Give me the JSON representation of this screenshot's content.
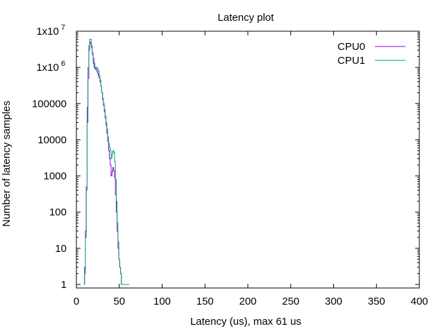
{
  "chart_data": {
    "type": "line",
    "title": "Latency plot",
    "xlabel": "Latency (us), max 61 us",
    "ylabel": "Number of latency samples",
    "xlim": [
      0,
      400
    ],
    "ylim": [
      0.8,
      10000000
    ],
    "yscale": "log",
    "grid": false,
    "legend_position": "top-right",
    "x_ticks": [
      {
        "value": 0,
        "label": "0"
      },
      {
        "value": 50,
        "label": "50"
      },
      {
        "value": 100,
        "label": "100"
      },
      {
        "value": 150,
        "label": "150"
      },
      {
        "value": 200,
        "label": "200"
      },
      {
        "value": 250,
        "label": "250"
      },
      {
        "value": 300,
        "label": "300"
      },
      {
        "value": 350,
        "label": "350"
      },
      {
        "value": 400,
        "label": "400"
      }
    ],
    "y_ticks": [
      {
        "value": 1,
        "label": "1"
      },
      {
        "value": 10,
        "label": "10"
      },
      {
        "value": 100,
        "label": "100"
      },
      {
        "value": 1000,
        "label": "1000"
      },
      {
        "value": 10000,
        "label": "10000"
      },
      {
        "value": 100000,
        "label": "100000"
      },
      {
        "value": 1000000,
        "label": "1x10",
        "exp": "6"
      },
      {
        "value": 10000000,
        "label": "1x10",
        "exp": "7"
      }
    ],
    "series": [
      {
        "name": "CPU0",
        "color": "#9400d3",
        "x": [
          9,
          10,
          11,
          12,
          13,
          14,
          15,
          16,
          17,
          18,
          19,
          20,
          21,
          22,
          23,
          24,
          25,
          26,
          27,
          28,
          29,
          30,
          31,
          32,
          33,
          34,
          35,
          36,
          37,
          38,
          39,
          40,
          41,
          42,
          43,
          44,
          45,
          46,
          47,
          48,
          49,
          50,
          51,
          52,
          53,
          54,
          55,
          56,
          57,
          58,
          59,
          60,
          61
        ],
        "y": [
          1,
          3,
          30,
          500,
          30000,
          500000,
          3000000,
          5000000,
          4500000,
          3500000,
          2500000,
          1800000,
          1300000,
          1000000,
          900000,
          800000,
          700000,
          600000,
          500000,
          400000,
          300000,
          200000,
          130000,
          90000,
          60000,
          40000,
          25000,
          15000,
          9000,
          5000,
          3000,
          2000,
          1000,
          1300,
          1700,
          1400,
          900,
          300,
          100,
          30,
          10,
          5,
          3,
          2,
          1,
          1,
          1,
          1,
          1,
          1,
          1,
          1,
          1
        ]
      },
      {
        "name": "CPU1",
        "color": "#009e73",
        "x": [
          9,
          10,
          11,
          12,
          13,
          14,
          15,
          16,
          17,
          18,
          19,
          20,
          21,
          22,
          23,
          24,
          25,
          26,
          27,
          28,
          29,
          30,
          31,
          32,
          33,
          34,
          35,
          36,
          37,
          38,
          39,
          40,
          41,
          42,
          43,
          44,
          45,
          46,
          47,
          48,
          49,
          50,
          51,
          52,
          53,
          54,
          55,
          56,
          57,
          58,
          59,
          60,
          61
        ],
        "y": [
          1,
          2,
          20,
          400,
          80000,
          1000000,
          4000000,
          6000000,
          6000000,
          4000000,
          2200000,
          1300000,
          1000000,
          900000,
          950000,
          1000000,
          900000,
          800000,
          600000,
          450000,
          300000,
          200000,
          140000,
          100000,
          70000,
          45000,
          30000,
          20000,
          12000,
          8000,
          6000,
          5000,
          3000,
          4000,
          5000,
          4500,
          2500,
          800,
          200,
          50,
          15,
          5,
          3,
          2,
          1,
          1,
          1,
          1,
          1,
          1,
          1,
          1,
          1
        ]
      }
    ]
  }
}
